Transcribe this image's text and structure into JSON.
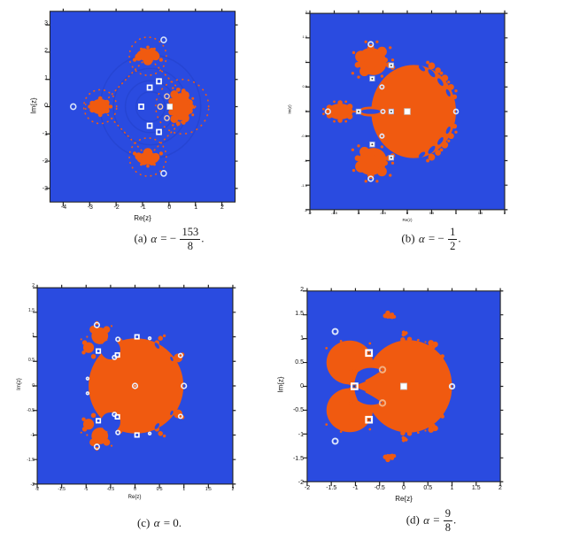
{
  "colors": {
    "background": "#ffffff",
    "basin_blue": "#2a4be0",
    "basin_orange": "#f05a10",
    "contour_blue": "#2443cd",
    "marker_white": "#ffffff",
    "axis_color": "#222222"
  },
  "figure_type": "2x2 grid of Julia set / basin-of-attraction plots",
  "panels": [
    {
      "key": "a",
      "xlabel": "Re{z}",
      "ylabel": "Im{z}",
      "xticks": [
        "-4",
        "-3",
        "-2",
        "-1",
        "0",
        "1",
        "2"
      ],
      "yticks": [
        "3",
        "2",
        "1",
        "0",
        "-1",
        "-2",
        "-3"
      ],
      "caption": {
        "index": "(a)",
        "alpha": "α",
        "rel": "= −",
        "num": "153",
        "den": "8",
        "tail": "."
      }
    },
    {
      "key": "b",
      "xlabel": "Re(z)",
      "ylabel": "Im(z)",
      "xticks": [
        "-2",
        "-1.5",
        "-1",
        "-0.5",
        "0",
        "0.5",
        "1",
        "1.5",
        "2"
      ],
      "yticks": [
        "2",
        "1.5",
        "1",
        "0.5",
        "0",
        "-0.5",
        "-1",
        "-1.5",
        "-2"
      ],
      "caption": {
        "index": "(b)",
        "alpha": "α",
        "rel": "= −",
        "num": "1",
        "den": "2",
        "tail": "."
      }
    },
    {
      "key": "c",
      "xlabel": "Re{z}",
      "ylabel": "Im{z}",
      "xticks": [
        "-2",
        "-1.5",
        "-1",
        "-0.5",
        "0",
        "0.5",
        "1",
        "1.5",
        "2"
      ],
      "yticks": [
        "2",
        "1.5",
        "1",
        "0.5",
        "0",
        "-0.5",
        "-1",
        "-1.5",
        "-2"
      ],
      "caption": {
        "index": "(c)",
        "alpha": "α",
        "rel": "=",
        "value": "0."
      }
    },
    {
      "key": "d",
      "xlabel": "Re{z}",
      "ylabel": "Im{z}",
      "xticks": [
        "-2",
        "-1.5",
        "-1",
        "-0.5",
        "0",
        "0.5",
        "1",
        "1.5",
        "2"
      ],
      "yticks": [
        "2",
        "1.5",
        "1",
        "0.5",
        "0",
        "-0.5",
        "-1",
        "-1.5",
        "-2"
      ],
      "caption": {
        "index": "(d)",
        "alpha": "α",
        "rel": "=",
        "num": "9",
        "den": "8",
        "tail": "."
      }
    }
  ]
}
